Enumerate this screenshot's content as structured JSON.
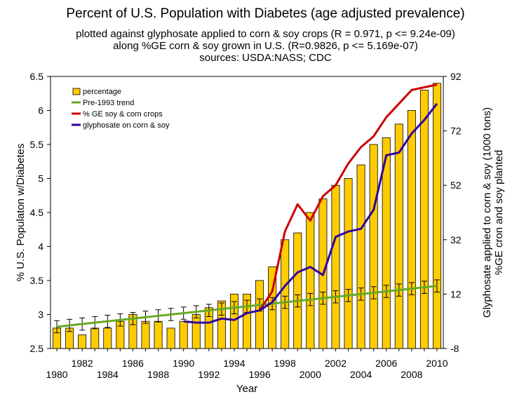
{
  "title": "Percent of U.S. Population with Diabetes (age adjusted prevalence)",
  "subtitle_lines": [
    "plotted against glyphosate applied to corn & soy crops (R = 0.971, p <= 9.24e-09)",
    "along %GE corn & soy grown in U.S. (R=0.9826, p <= 5.169e-07)",
    "sources: USDA:NASS; CDC"
  ],
  "chart_data": {
    "type": "bar",
    "title": "Percent of U.S. Population with Diabetes (age adjusted prevalence)",
    "xlabel": "Year",
    "ylabel": "% U.S. Populaton w/Diabetes",
    "y2label_lines": [
      "Glyphosate applied to corn & soy (1000 tons)",
      "%GE cron and soy planted"
    ],
    "ylim": [
      2.5,
      6.5
    ],
    "y_ticks": [
      "2.5",
      "3",
      "3.5",
      "4",
      "4.5",
      "5",
      "5.5",
      "6",
      "6.5"
    ],
    "y2lim": [
      -8,
      92
    ],
    "y2_ticks": [
      "-8",
      "12",
      "32",
      "52",
      "72",
      "92"
    ],
    "x_tick_labels_row1": [
      "1980",
      "1984",
      "1988",
      "1992",
      "1996",
      "2000",
      "2004",
      "2008"
    ],
    "x_tick_labels_row2": [
      "1982",
      "1986",
      "1990",
      "1994",
      "1998",
      "2002",
      "2006",
      "2010"
    ],
    "legend_position": "top-left",
    "grid": false,
    "categories": [
      1980,
      1981,
      1982,
      1983,
      1984,
      1985,
      1986,
      1987,
      1988,
      1989,
      1990,
      1991,
      1992,
      1993,
      1994,
      1995,
      1996,
      1997,
      1998,
      1999,
      2000,
      2001,
      2002,
      2003,
      2004,
      2005,
      2006,
      2007,
      2008,
      2009,
      2010
    ],
    "series": [
      {
        "name": "percentage",
        "kind": "bar",
        "color": "#ffcc00",
        "axis": "left",
        "values": [
          2.8,
          2.8,
          2.7,
          2.8,
          2.8,
          2.9,
          3.0,
          2.9,
          2.9,
          2.8,
          2.9,
          3.0,
          3.1,
          3.2,
          3.3,
          3.3,
          3.5,
          3.7,
          4.1,
          4.2,
          4.5,
          4.7,
          4.9,
          5.0,
          5.2,
          5.5,
          5.6,
          5.8,
          6.0,
          6.3,
          6.4
        ]
      },
      {
        "name": "Pre-1993 trend",
        "kind": "line",
        "color": "#66aa22",
        "axis": "left",
        "x": [
          1980,
          2010
        ],
        "values": [
          2.82,
          3.42
        ]
      },
      {
        "name": "% GE soy & corn crops",
        "kind": "line",
        "color": "#cc0000",
        "axis": "right",
        "x": [
          1996,
          1997,
          1998,
          1999,
          2000,
          2001,
          2002,
          2003,
          2004,
          2005,
          2006,
          2007,
          2008,
          2009,
          2010
        ],
        "values": [
          6,
          13,
          35,
          45,
          39,
          48,
          52,
          60,
          66,
          70,
          77,
          82,
          87,
          88,
          89
        ]
      },
      {
        "name": "glyphosate on corn & soy",
        "kind": "line",
        "color": "#330099",
        "axis": "right",
        "x": [
          1990,
          1991,
          1992,
          1993,
          1994,
          1995,
          1996,
          1997,
          1998,
          1999,
          2000,
          2001,
          2002,
          2003,
          2004,
          2005,
          2006,
          2007,
          2008,
          2009,
          2010
        ],
        "values": [
          2,
          1.5,
          1.5,
          3,
          2.5,
          5,
          6,
          9,
          15,
          20,
          22,
          19,
          33,
          35,
          36,
          43,
          63,
          64,
          71,
          76,
          82
        ]
      }
    ],
    "error_bar_center": [
      2.82,
      2.84,
      2.86,
      2.88,
      2.9,
      2.92,
      2.94,
      2.96,
      2.98,
      3.0,
      3.02,
      3.04,
      3.06,
      3.08,
      3.1,
      3.12,
      3.14,
      3.16,
      3.18,
      3.2,
      3.22,
      3.24,
      3.26,
      3.28,
      3.3,
      3.32,
      3.34,
      3.36,
      3.38,
      3.4,
      3.42
    ]
  }
}
